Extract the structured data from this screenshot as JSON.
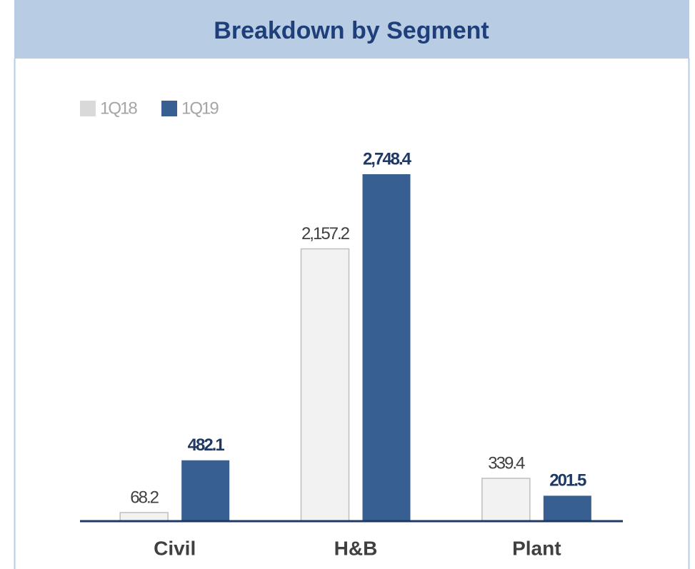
{
  "chart_data": {
    "type": "bar",
    "title": "Breakdown by Segment",
    "categories": [
      "Civil",
      "H&B",
      "Plant"
    ],
    "series": [
      {
        "name": "1Q18",
        "color": "#f2f2f2",
        "values": [
          68.2,
          2157.2,
          339.4
        ],
        "value_labels": [
          "68.2",
          "2,157.2",
          "339.4"
        ]
      },
      {
        "name": "1Q19",
        "color": "#375f91",
        "values": [
          482.1,
          2748.4,
          201.5
        ],
        "value_labels": [
          "482.1",
          "2,748.4",
          "201.5"
        ]
      }
    ],
    "legend": "top-left"
  }
}
